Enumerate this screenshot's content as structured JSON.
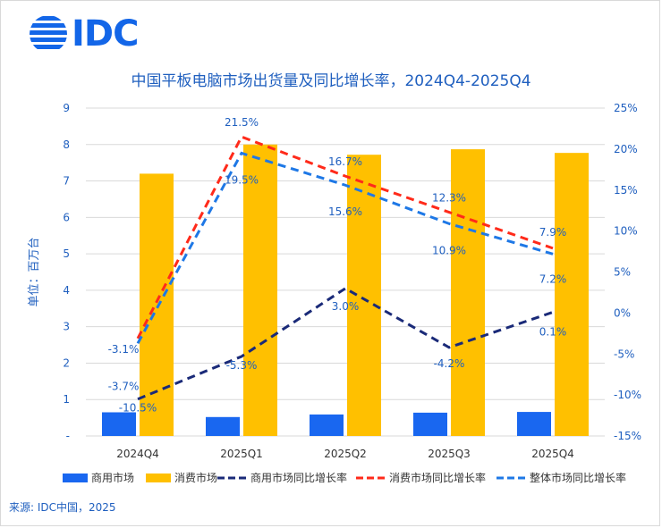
{
  "logo_text": "IDC",
  "footer": {
    "source": "来源: IDC中国，2025"
  },
  "colors": {
    "commercial_bar": "#1967f0",
    "consumer_bar": "#ffc000",
    "commercial_line": "#1a2a78",
    "consumer_line": "#ff2a1a",
    "total_line": "#1e78e6",
    "axis_text": "#1f5fbf"
  },
  "chart_data": {
    "type": "bar",
    "title": "中国平板电脑市场出货量及同比增长率，2024Q4-2025Q4",
    "ylabel": "单位：百万台",
    "categories": [
      "2024Q4",
      "2025Q1",
      "2025Q2",
      "2025Q3",
      "2025Q4"
    ],
    "ylim": [
      0,
      9
    ],
    "y_ticks": [
      "-",
      "1",
      "2",
      "3",
      "4",
      "5",
      "6",
      "7",
      "8",
      "9"
    ],
    "y2lim": [
      -15,
      25
    ],
    "y2_ticks": [
      "-15%",
      "-10%",
      "-5%",
      "0%",
      "5%",
      "10%",
      "15%",
      "20%",
      "25%"
    ],
    "grid": true,
    "legend_position": "bottom",
    "bar_series": [
      {
        "name": "商用市场",
        "values": [
          0.65,
          0.52,
          0.59,
          0.64,
          0.66
        ]
      },
      {
        "name": "消费市场",
        "values": [
          7.2,
          8.0,
          7.72,
          7.87,
          7.77
        ]
      }
    ],
    "line_series": [
      {
        "name": "商用市场同比增长率",
        "values": [
          -10.5,
          -5.3,
          3.0,
          -4.2,
          0.1
        ],
        "labels": [
          "-10.5%",
          "-5.3%",
          "3.0%",
          "-4.2%",
          "0.1%"
        ]
      },
      {
        "name": "消费市场同比增长率",
        "values": [
          -3.1,
          21.5,
          16.7,
          12.3,
          7.9
        ],
        "labels": [
          "-3.1%",
          "21.5%",
          "16.7%",
          "12.3%",
          "7.9%"
        ]
      },
      {
        "name": "整体市场同比增长率",
        "values": [
          -3.7,
          19.5,
          15.6,
          10.9,
          7.2
        ],
        "labels": [
          "-3.7%",
          "19.5%",
          "15.6%",
          "10.9%",
          "7.2%"
        ]
      }
    ]
  }
}
